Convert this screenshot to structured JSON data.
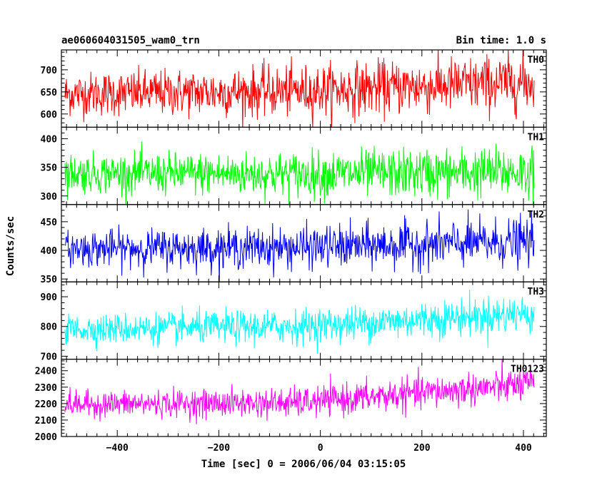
{
  "header": {
    "obs_id": "ae060604031505_wam0_trn",
    "bin_time": "Bin time: 1.0 s"
  },
  "chart_data": {
    "type": "line",
    "title": "ae060604031505_wam0_trn",
    "xlabel": "Time [sec] 0 = 2006/06/04 03:15:05",
    "ylabel": "Counts/sec",
    "xlim": [
      -510,
      445
    ],
    "x_ticks": [
      -400,
      -200,
      0,
      200,
      400
    ],
    "x_tick_labels": [
      "−400",
      "−200",
      "0",
      "200",
      "400"
    ],
    "x_range_data": [
      -503,
      421
    ],
    "bin_time_s": 1.0,
    "panels": [
      {
        "name": "TH0",
        "color": "#ff0000",
        "ylim": [
          570,
          745
        ],
        "yticks": [
          600,
          650,
          700
        ],
        "mean_start": 645,
        "mean_mid": 652,
        "mean_end": 672,
        "amplitude": 38
      },
      {
        "name": "TH1",
        "color": "#00ff00",
        "ylim": [
          285,
          420
        ],
        "yticks": [
          300,
          350,
          400
        ],
        "mean_start": 340,
        "mean_mid": 338,
        "mean_end": 342,
        "amplitude": 26
      },
      {
        "name": "TH2",
        "color": "#0000ff",
        "ylim": [
          345,
          480
        ],
        "yticks": [
          350,
          400,
          450
        ],
        "mean_start": 403,
        "mean_mid": 405,
        "mean_end": 415,
        "amplitude": 24
      },
      {
        "name": "TH3",
        "color": "#00ffff",
        "ylim": [
          690,
          950
        ],
        "yticks": [
          700,
          800,
          900
        ],
        "mean_start": 790,
        "mean_mid": 800,
        "mean_end": 845,
        "amplitude": 38
      },
      {
        "name": "TH0123",
        "color": "#ff00ff",
        "ylim": [
          2000,
          2470
        ],
        "yticks": [
          2000,
          2100,
          2200,
          2300,
          2400
        ],
        "mean_start": 2195,
        "mean_mid": 2205,
        "mean_end": 2320,
        "amplitude": 60
      }
    ]
  }
}
